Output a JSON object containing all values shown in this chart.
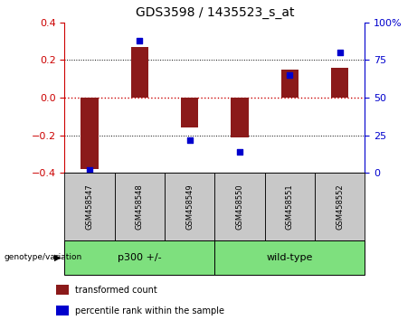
{
  "title": "GDS3598 / 1435523_s_at",
  "samples": [
    "GSM458547",
    "GSM458548",
    "GSM458549",
    "GSM458550",
    "GSM458551",
    "GSM458552"
  ],
  "bar_values": [
    -0.38,
    0.27,
    -0.16,
    -0.21,
    0.15,
    0.16
  ],
  "percentile_values": [
    2,
    88,
    22,
    14,
    65,
    80
  ],
  "bar_color": "#8B1A1A",
  "point_color": "#0000CD",
  "ylim": [
    -0.4,
    0.4
  ],
  "yticks": [
    -0.4,
    -0.2,
    0,
    0.2,
    0.4
  ],
  "y2ticks": [
    0,
    25,
    50,
    75,
    100
  ],
  "y2ticklabels": [
    "0",
    "25",
    "50",
    "75",
    "100%"
  ],
  "hline_color": "#CC0000",
  "dotted_color": "#000000",
  "legend_items": [
    {
      "label": "transformed count",
      "color": "#8B1A1A"
    },
    {
      "label": "percentile rank within the sample",
      "color": "#0000CD"
    }
  ],
  "genotype_label": "genotype/variation",
  "group_labels": [
    "p300 +/-",
    "wild-type"
  ],
  "group_starts": [
    0,
    3
  ],
  "group_ends": [
    3,
    6
  ],
  "gray_color": "#C8C8C8",
  "green_color": "#7EE07E"
}
